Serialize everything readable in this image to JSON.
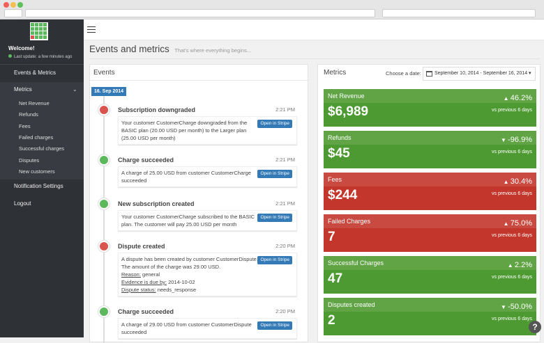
{
  "sidebar": {
    "welcome": "Welcome!",
    "last_update": "Last update: a few minutes ago",
    "nav_top": "Events & Metrics",
    "nav_metrics": "Metrics",
    "metrics_sub": [
      "Net Revenue",
      "Refunds",
      "Fees",
      "Failed charges",
      "Successful charges",
      "Disputes",
      "New customers"
    ],
    "nav_bottom": [
      "Notification Settings",
      "Logout"
    ]
  },
  "header": {
    "title": "Events and metrics",
    "subtitle": "That's where everything begins..."
  },
  "events": {
    "title": "Events",
    "date_badge": "16. Sep 2014",
    "items": [
      {
        "title": "Subscription downgraded",
        "time": "2:21 PM",
        "color": "#d9534f",
        "text": "Your customer CustomerCharge downgraded from the BASIC plan (20.00 USD per month) to the Larger plan (25.00 USD per month)",
        "button": "Open in Stripe"
      },
      {
        "title": "Charge succeeded",
        "time": "2:21 PM",
        "color": "#5cb85c",
        "text": "A charge of 25.00 USD from customer CustomerCharge succeeded",
        "button": "Open in Stripe"
      },
      {
        "title": "New subscription created",
        "time": "2:21 PM",
        "color": "#5cb85c",
        "text": "Your customer CustomerCharge subscribed to the BASIC plan. The customer will pay 25.00 USD per month",
        "button": "Open in Stripe"
      },
      {
        "title": "Dispute created",
        "time": "2:20 PM",
        "color": "#d9534f",
        "text": "A dispute has been created by customer CustomerDispute. The amount of the charge was 29.00 USD.",
        "button": "Open in Stripe",
        "details": [
          {
            "label": "Reason:",
            "value": "general"
          },
          {
            "label": "Evidence is due by:",
            "value": "2014-10-02"
          },
          {
            "label": "Dispute status:",
            "value": "needs_response"
          }
        ]
      },
      {
        "title": "Charge succeeded",
        "time": "2:20 PM",
        "color": "#5cb85c",
        "text": "A charge of 29.00 USD from customer CustomerDispute succeeded",
        "button": "Open in Stripe"
      }
    ]
  },
  "metrics": {
    "title": "Metrics",
    "date_label": "Choose a date:",
    "date_range": "September 10, 2014 - September 16, 2014",
    "cards": [
      {
        "name": "Net Revenue",
        "value": "$6,989",
        "change": "46.2%",
        "trend": "up",
        "compare": "vs previous 6 days",
        "color": "#4e9a32"
      },
      {
        "name": "Refunds",
        "value": "$45",
        "change": "-96.9%",
        "trend": "down",
        "compare": "vs previous 6 days",
        "color": "#4e9a32"
      },
      {
        "name": "Fees",
        "value": "$244",
        "change": "30.4%",
        "trend": "up",
        "compare": "vs previous 6 days",
        "color": "#c2362b"
      },
      {
        "name": "Failed Charges",
        "value": "7",
        "change": "75.0%",
        "trend": "up",
        "compare": "vs previous 6 days",
        "color": "#c2362b"
      },
      {
        "name": "Successful Charges",
        "value": "47",
        "change": "2.2%",
        "trend": "up",
        "compare": "vs previous 6 days",
        "color": "#4e9a32"
      },
      {
        "name": "Disputes created",
        "value": "2",
        "change": "-50.0%",
        "trend": "down",
        "compare": "vs previous 6 days",
        "color": "#4e9a32"
      }
    ]
  },
  "help": "?"
}
